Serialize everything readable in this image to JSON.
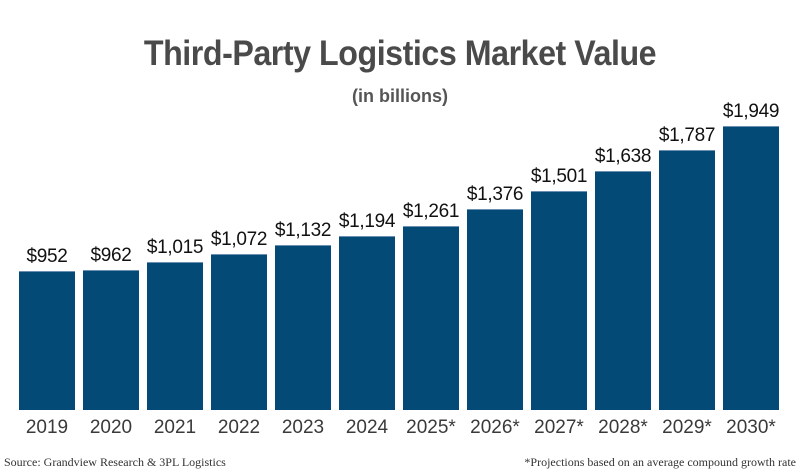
{
  "title": "Third-Party Logistics Market Value",
  "subtitle": "(in billions)",
  "footer": {
    "source": "Source: Grandview Research & 3PL Logistics",
    "note": "*Projections based on an average compound growth rate"
  },
  "colors": {
    "bar": "#034a76",
    "title": "#4a4a4a"
  },
  "chart_data": {
    "type": "bar",
    "title": "Third-Party Logistics Market Value",
    "subtitle": "(in billions)",
    "xlabel": "",
    "ylabel": "",
    "categories": [
      "2019",
      "2020",
      "2021",
      "2022",
      "2023",
      "2024",
      "2025*",
      "2026*",
      "2027*",
      "2028*",
      "2029*",
      "2030*"
    ],
    "values": [
      952,
      962,
      1015,
      1072,
      1132,
      1194,
      1261,
      1376,
      1501,
      1638,
      1787,
      1949
    ],
    "labels": [
      "$952",
      "$962",
      "$1,015",
      "$1,072",
      "$1,132",
      "$1,194",
      "$1,261",
      "$1,376",
      "$1,501",
      "$1,638",
      "$1,787",
      "$1,949"
    ],
    "ylim": [
      0,
      1949
    ],
    "grid": false,
    "legend": "none"
  }
}
